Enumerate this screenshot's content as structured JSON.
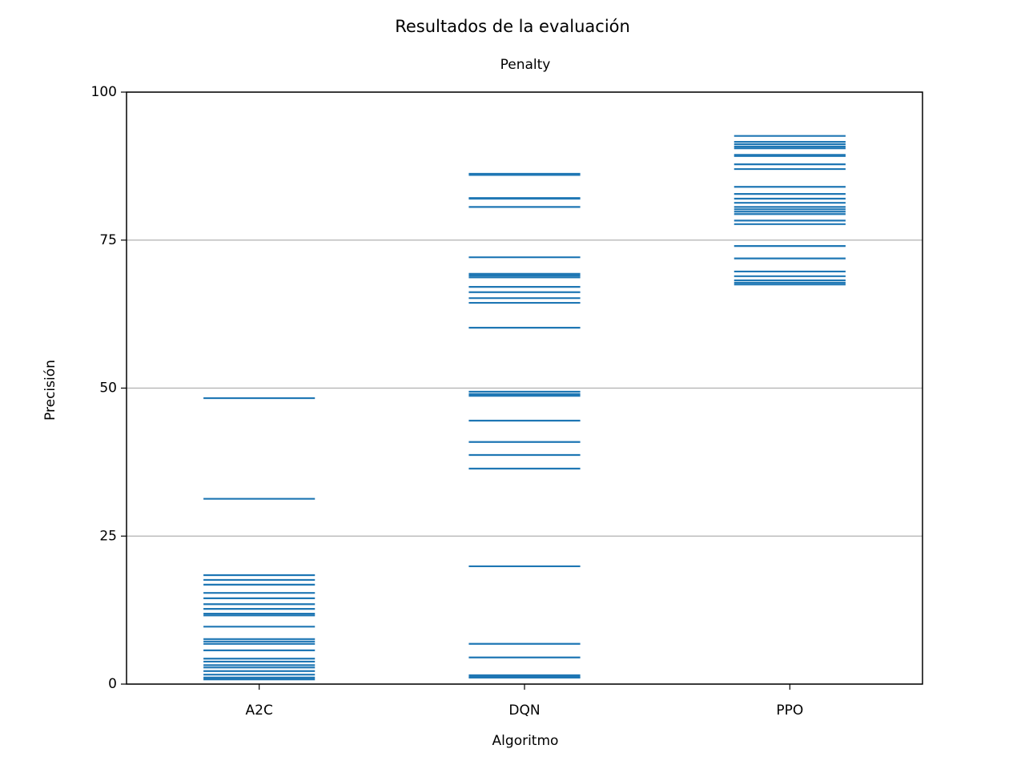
{
  "chart_data": {
    "type": "strip",
    "title": "Resultados de la evaluación",
    "subtitle": "Penalty",
    "xlabel": "Algoritmo",
    "ylabel": "Precisión",
    "categories": [
      "A2C",
      "DQN",
      "PPO"
    ],
    "values": [
      [
        48.3,
        31.3,
        18.4,
        17.6,
        16.8,
        15.4,
        14.5,
        13.5,
        12.7,
        11.9,
        11.6,
        9.7,
        7.6,
        7.2,
        6.8,
        5.7,
        4.3,
        3.8,
        3.2,
        2.8,
        2.2,
        1.6,
        1.1,
        0.8
      ],
      [
        86.2,
        86.0,
        82.1,
        82.0,
        80.6,
        72.1,
        69.3,
        69.0,
        68.7,
        67.1,
        66.2,
        65.2,
        64.4,
        60.2,
        49.4,
        49.0,
        48.7,
        44.5,
        40.9,
        38.7,
        36.4,
        19.9,
        6.8,
        4.5,
        1.5,
        1.2,
        1.1
      ],
      [
        92.6,
        91.6,
        91.2,
        90.8,
        90.5,
        89.4,
        89.2,
        87.8,
        87.0,
        84.0,
        82.8,
        82.0,
        81.3,
        80.6,
        80.2,
        79.8,
        79.4,
        78.3,
        77.7,
        74.0,
        71.9,
        69.7,
        68.9,
        68.2,
        67.8,
        67.5
      ]
    ],
    "color": "#1f77b4",
    "ylim": [
      0,
      100
    ],
    "yticks": [
      0,
      25,
      50,
      75,
      100
    ],
    "grid": true
  }
}
